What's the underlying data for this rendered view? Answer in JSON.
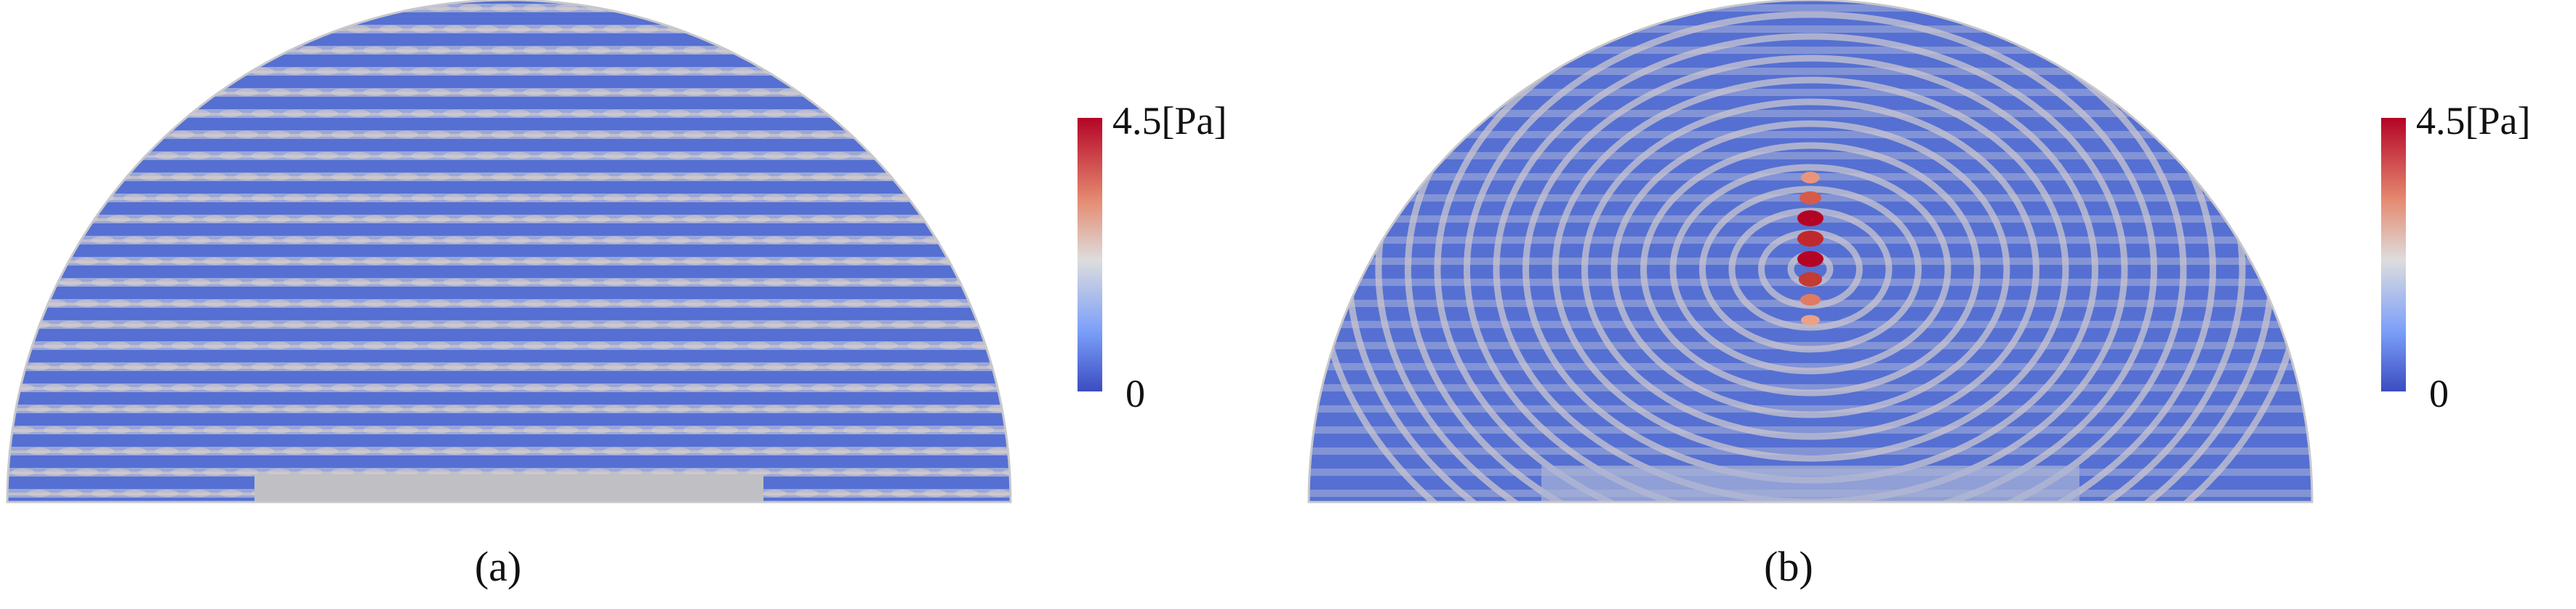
{
  "figure": {
    "panels": [
      {
        "id": "a",
        "caption": "(a)",
        "colorbar": {
          "max_label": "4.5[Pa]",
          "min_label": "0"
        }
      },
      {
        "id": "b",
        "caption": "(b)",
        "colorbar": {
          "max_label": "4.5[Pa]",
          "min_label": "0"
        }
      }
    ],
    "colors": {
      "low": "#3b4cc0",
      "mid": "#dddddd",
      "high": "#b40426"
    }
  }
}
